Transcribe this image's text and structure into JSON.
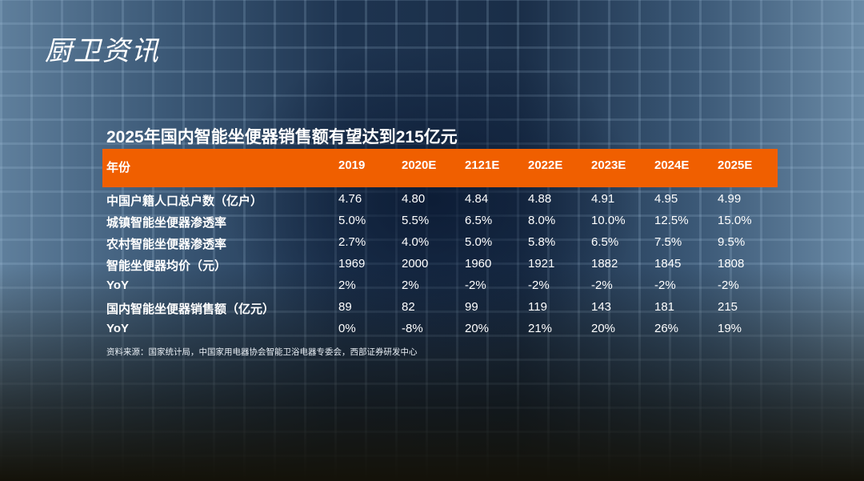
{
  "logo": "厨卫资讯",
  "chart_data": {
    "type": "table",
    "title": "2025年国内智能坐便器销售额有望达到215亿元",
    "header": [
      "年份",
      "2019",
      "2020E",
      "2121E",
      "2022E",
      "2023E",
      "2024E",
      "2025E"
    ],
    "rows": [
      [
        "中国户籍人口总户数（亿户）",
        "4.76",
        "4.80",
        "4.84",
        "4.88",
        "4.91",
        "4.95",
        "4.99"
      ],
      [
        "城镇智能坐便器渗透率",
        "5.0%",
        "5.5%",
        "6.5%",
        "8.0%",
        "10.0%",
        "12.5%",
        "15.0%"
      ],
      [
        "农村智能坐便器渗透率",
        "2.7%",
        "4.0%",
        "5.0%",
        "5.8%",
        "6.5%",
        "7.5%",
        "9.5%"
      ],
      [
        "智能坐便器均价（元）",
        "1969",
        "2000",
        "1960",
        "1921",
        "1882",
        "1845",
        "1808"
      ],
      [
        "YoY",
        "2%",
        "2%",
        "-2%",
        "-2%",
        "-2%",
        "-2%",
        "-2%"
      ],
      [
        "国内智能坐便器销售额（亿元）",
        "89",
        "82",
        "99",
        "119",
        "143",
        "181",
        "215"
      ],
      [
        "YoY",
        "0%",
        "-8%",
        "20%",
        "21%",
        "20%",
        "26%",
        "19%"
      ]
    ],
    "source": "资料来源：国家统计局，中国家用电器协会智能卫浴电器专委会，西部证券研发中心",
    "header_color": "#f05f00"
  }
}
